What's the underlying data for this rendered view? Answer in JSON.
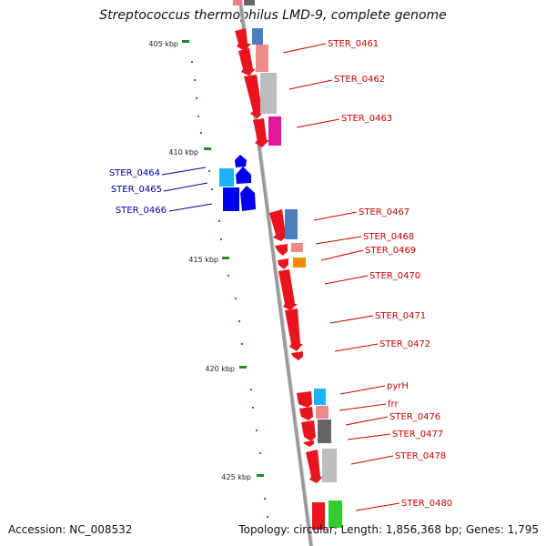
{
  "title": "Streptococcus thermophilus LMD-9, complete genome",
  "footer": {
    "accession": "Accession: NC_008532",
    "summary": "Topology: circular; Length: 1,856,368 bp; Genes: 1,795"
  },
  "colors": {
    "forward_label": "#cc0000",
    "reverse_label": "#0000aa",
    "backbone": "#888888",
    "tick": "#228b22"
  },
  "ticks": [
    "405 kbp",
    "410 kbp",
    "415 kbp",
    "420 kbp",
    "425 kbp"
  ],
  "genes": [
    {
      "label": "STER_0461",
      "strand": "forward"
    },
    {
      "label": "STER_0462",
      "strand": "forward"
    },
    {
      "label": "STER_0463",
      "strand": "forward"
    },
    {
      "label": "STER_0464",
      "strand": "reverse"
    },
    {
      "label": "STER_0465",
      "strand": "reverse"
    },
    {
      "label": "STER_0466",
      "strand": "reverse"
    },
    {
      "label": "STER_0467",
      "strand": "forward"
    },
    {
      "label": "STER_0468",
      "strand": "forward"
    },
    {
      "label": "STER_0469",
      "strand": "forward"
    },
    {
      "label": "STER_0470",
      "strand": "forward"
    },
    {
      "label": "STER_0471",
      "strand": "forward"
    },
    {
      "label": "STER_0472",
      "strand": "forward"
    },
    {
      "label": "pyrH",
      "strand": "forward"
    },
    {
      "label": "frr",
      "strand": "forward"
    },
    {
      "label": "STER_0476",
      "strand": "forward"
    },
    {
      "label": "STER_0477",
      "strand": "forward"
    },
    {
      "label": "STER_0478",
      "strand": "forward"
    },
    {
      "label": "STER_0480",
      "strand": "forward"
    }
  ]
}
